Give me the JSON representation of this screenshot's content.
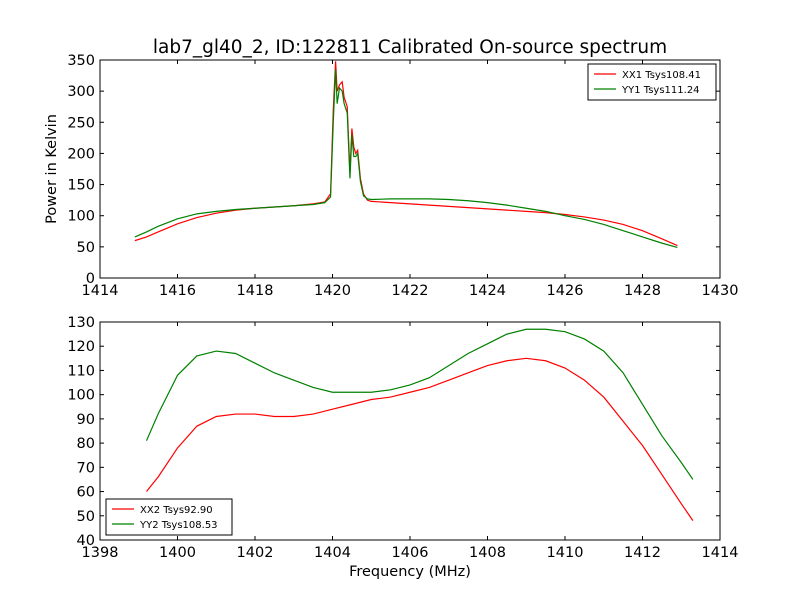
{
  "figure": {
    "title": "lab7_gl40_2, ID:122811 Calibrated On-source spectrum"
  },
  "chart_data": [
    {
      "type": "line",
      "xlabel": "",
      "ylabel": "Power in Kelvin",
      "xlim": [
        1414,
        1430
      ],
      "ylim": [
        0,
        350
      ],
      "xticks": [
        1414,
        1416,
        1418,
        1420,
        1422,
        1424,
        1426,
        1428,
        1430
      ],
      "yticks": [
        0,
        50,
        100,
        150,
        200,
        250,
        300,
        350
      ],
      "legend_position": "top-right",
      "grid": false,
      "series": [
        {
          "name": "XX1 Tsys108.41",
          "color": "#ff0000",
          "x": [
            1414.9,
            1415.2,
            1415.5,
            1416.0,
            1416.5,
            1417.0,
            1417.5,
            1418.0,
            1418.5,
            1419.0,
            1419.5,
            1419.8,
            1419.95,
            1420.02,
            1420.08,
            1420.12,
            1420.18,
            1420.25,
            1420.3,
            1420.38,
            1420.45,
            1420.5,
            1420.55,
            1420.6,
            1420.65,
            1420.72,
            1420.8,
            1420.9,
            1421.0,
            1421.5,
            1422.0,
            1422.5,
            1423.0,
            1423.5,
            1424.0,
            1424.5,
            1425.0,
            1425.5,
            1426.0,
            1426.5,
            1427.0,
            1427.5,
            1428.0,
            1428.5,
            1428.9
          ],
          "y": [
            60,
            66,
            74,
            87,
            97,
            104,
            109,
            112,
            114,
            116,
            119,
            122,
            135,
            270,
            348,
            300,
            310,
            315,
            290,
            275,
            170,
            240,
            210,
            200,
            205,
            160,
            135,
            125,
            123,
            121,
            119,
            117,
            115,
            113,
            111,
            109,
            107,
            105,
            102,
            98,
            93,
            86,
            76,
            63,
            52
          ]
        },
        {
          "name": "YY1 Tsys111.24",
          "color": "#008000",
          "x": [
            1414.9,
            1415.2,
            1415.5,
            1416.0,
            1416.5,
            1417.0,
            1417.5,
            1418.0,
            1418.5,
            1419.0,
            1419.5,
            1419.8,
            1419.95,
            1420.02,
            1420.08,
            1420.12,
            1420.18,
            1420.25,
            1420.3,
            1420.38,
            1420.45,
            1420.5,
            1420.55,
            1420.6,
            1420.65,
            1420.72,
            1420.8,
            1420.9,
            1421.0,
            1421.5,
            1422.0,
            1422.5,
            1423.0,
            1423.5,
            1424.0,
            1424.5,
            1425.0,
            1425.5,
            1426.0,
            1426.5,
            1427.0,
            1427.5,
            1428.0,
            1428.5,
            1428.9
          ],
          "y": [
            66,
            74,
            83,
            95,
            103,
            107,
            110,
            112,
            114,
            116,
            118,
            121,
            130,
            250,
            335,
            280,
            305,
            300,
            280,
            265,
            160,
            230,
            195,
            195,
            200,
            155,
            132,
            127,
            126,
            127,
            127,
            127,
            126,
            124,
            121,
            117,
            112,
            107,
            100,
            94,
            86,
            76,
            66,
            56,
            49
          ]
        }
      ]
    },
    {
      "type": "line",
      "xlabel": "Frequency (MHz)",
      "ylabel": "",
      "xlim": [
        1398,
        1414
      ],
      "ylim": [
        40,
        130
      ],
      "xticks": [
        1398,
        1400,
        1402,
        1404,
        1406,
        1408,
        1410,
        1412,
        1414
      ],
      "yticks": [
        40,
        50,
        60,
        70,
        80,
        90,
        100,
        110,
        120,
        130
      ],
      "legend_position": "bottom-left",
      "grid": false,
      "series": [
        {
          "name": "XX2 Tsys92.90",
          "color": "#ff0000",
          "x": [
            1399.2,
            1399.5,
            1400.0,
            1400.5,
            1401.0,
            1401.5,
            1402.0,
            1402.5,
            1403.0,
            1403.5,
            1404.0,
            1404.5,
            1405.0,
            1405.5,
            1406.0,
            1406.5,
            1407.0,
            1407.5,
            1408.0,
            1408.5,
            1409.0,
            1409.5,
            1410.0,
            1410.5,
            1411.0,
            1411.5,
            1412.0,
            1412.5,
            1413.0,
            1413.3
          ],
          "y": [
            60,
            66,
            78,
            87,
            91,
            92,
            92,
            91,
            91,
            92,
            94,
            96,
            98,
            99,
            101,
            103,
            106,
            109,
            112,
            114,
            115,
            114,
            111,
            106,
            99,
            89,
            79,
            67,
            55,
            48
          ]
        },
        {
          "name": "YY2 Tsys108.53",
          "color": "#008000",
          "x": [
            1399.2,
            1399.5,
            1400.0,
            1400.5,
            1401.0,
            1401.5,
            1402.0,
            1402.5,
            1403.0,
            1403.5,
            1404.0,
            1404.5,
            1405.0,
            1405.5,
            1406.0,
            1406.5,
            1407.0,
            1407.5,
            1408.0,
            1408.5,
            1409.0,
            1409.5,
            1410.0,
            1410.5,
            1411.0,
            1411.5,
            1412.0,
            1412.5,
            1413.0,
            1413.3
          ],
          "y": [
            81,
            92,
            108,
            116,
            118,
            117,
            113,
            109,
            106,
            103,
            101,
            101,
            101,
            102,
            104,
            107,
            112,
            117,
            121,
            125,
            127,
            127,
            126,
            123,
            118,
            109,
            96,
            83,
            72,
            65
          ]
        }
      ]
    }
  ]
}
